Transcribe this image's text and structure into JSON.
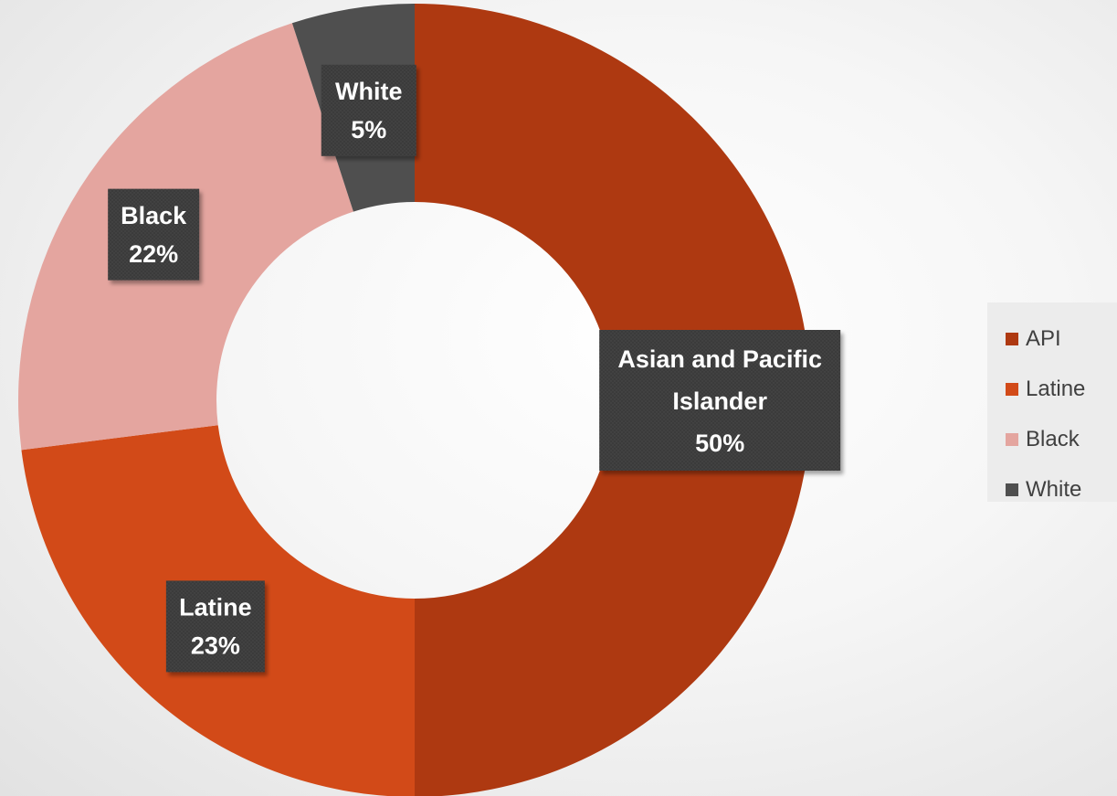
{
  "chart_data": {
    "type": "pie",
    "donut": true,
    "slices": [
      {
        "name": "API",
        "label": "Asian and Pacific Islander",
        "value": 50,
        "value_label": "50%",
        "color": "#ae3911"
      },
      {
        "name": "Latine",
        "label": "Latine",
        "value": 23,
        "value_label": "23%",
        "color": "#d24a18"
      },
      {
        "name": "Black",
        "label": "Black",
        "value": 22,
        "value_label": "22%",
        "color": "#e4a59f"
      },
      {
        "name": "White",
        "label": "White",
        "value": 5,
        "value_label": "5%",
        "color": "#4f4f4f"
      }
    ],
    "legend": {
      "position": "right",
      "entries": [
        "API",
        "Latine",
        "Black",
        "White"
      ]
    },
    "label_box_color": "#3a3a3a"
  }
}
